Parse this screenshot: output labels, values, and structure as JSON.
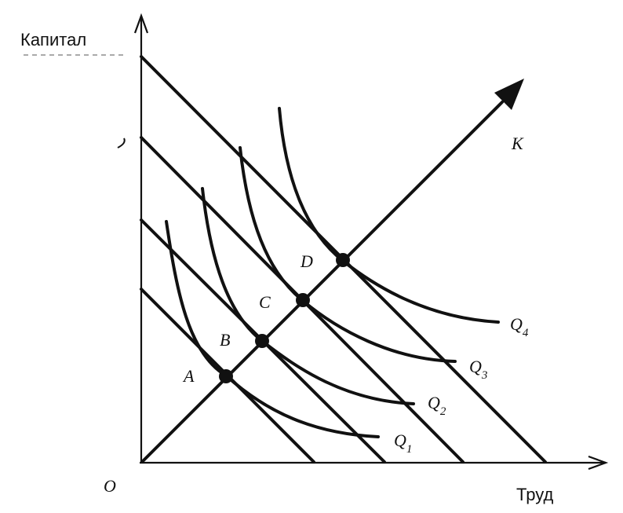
{
  "axes": {
    "y_label": "Капитал",
    "x_label": "Труд",
    "origin_label": "O"
  },
  "expansion_path": {
    "label": "K"
  },
  "points": [
    {
      "label": "A"
    },
    {
      "label": "B"
    },
    {
      "label": "C"
    },
    {
      "label": "D"
    }
  ],
  "isoquants": [
    {
      "label": "Q",
      "sub": "1"
    },
    {
      "label": "Q",
      "sub": "2"
    },
    {
      "label": "Q",
      "sub": "3"
    },
    {
      "label": "Q",
      "sub": "4"
    }
  ]
}
